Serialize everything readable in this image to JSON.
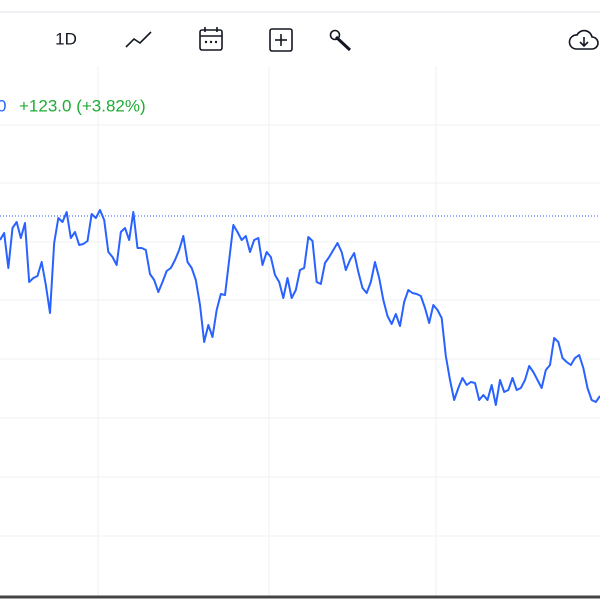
{
  "toolbar": {
    "interval": "1D"
  },
  "quote": {
    "last_fragment": "0",
    "change": "+123.0 (+3.82%)"
  },
  "chart_data": {
    "type": "line",
    "color": "#2962ff",
    "reference": 384,
    "ylim": [
      0,
      600
    ],
    "values": [
      360,
      367,
      332,
      372,
      378,
      362,
      377,
      318,
      322,
      324,
      338,
      315,
      287,
      357,
      382,
      378,
      388,
      362,
      368,
      355,
      356,
      359,
      386,
      382,
      390,
      380,
      348,
      343,
      335,
      368,
      372,
      360,
      388,
      352,
      352,
      350,
      326,
      320,
      308,
      318,
      329,
      332,
      340,
      350,
      364,
      338,
      332,
      320,
      295,
      258,
      275,
      263,
      290,
      306,
      305,
      340,
      375,
      368,
      360,
      364,
      348,
      360,
      362,
      335,
      348,
      343,
      325,
      318,
      302,
      322,
      302,
      310,
      330,
      332,
      363,
      359,
      318,
      316,
      337,
      343,
      350,
      357,
      348,
      330,
      340,
      347,
      328,
      312,
      307,
      318,
      338,
      322,
      300,
      284,
      276,
      286,
      274,
      298,
      310,
      307,
      306,
      304,
      292,
      277,
      295,
      290,
      282,
      244,
      220,
      200,
      212,
      222,
      215,
      218,
      217,
      200,
      205,
      200,
      215,
      195,
      220,
      208,
      210,
      222,
      210,
      212,
      220,
      234,
      228,
      220,
      212,
      230,
      235,
      262,
      258,
      242,
      238,
      235,
      242,
      245,
      232,
      212,
      200,
      198,
      204
    ]
  }
}
